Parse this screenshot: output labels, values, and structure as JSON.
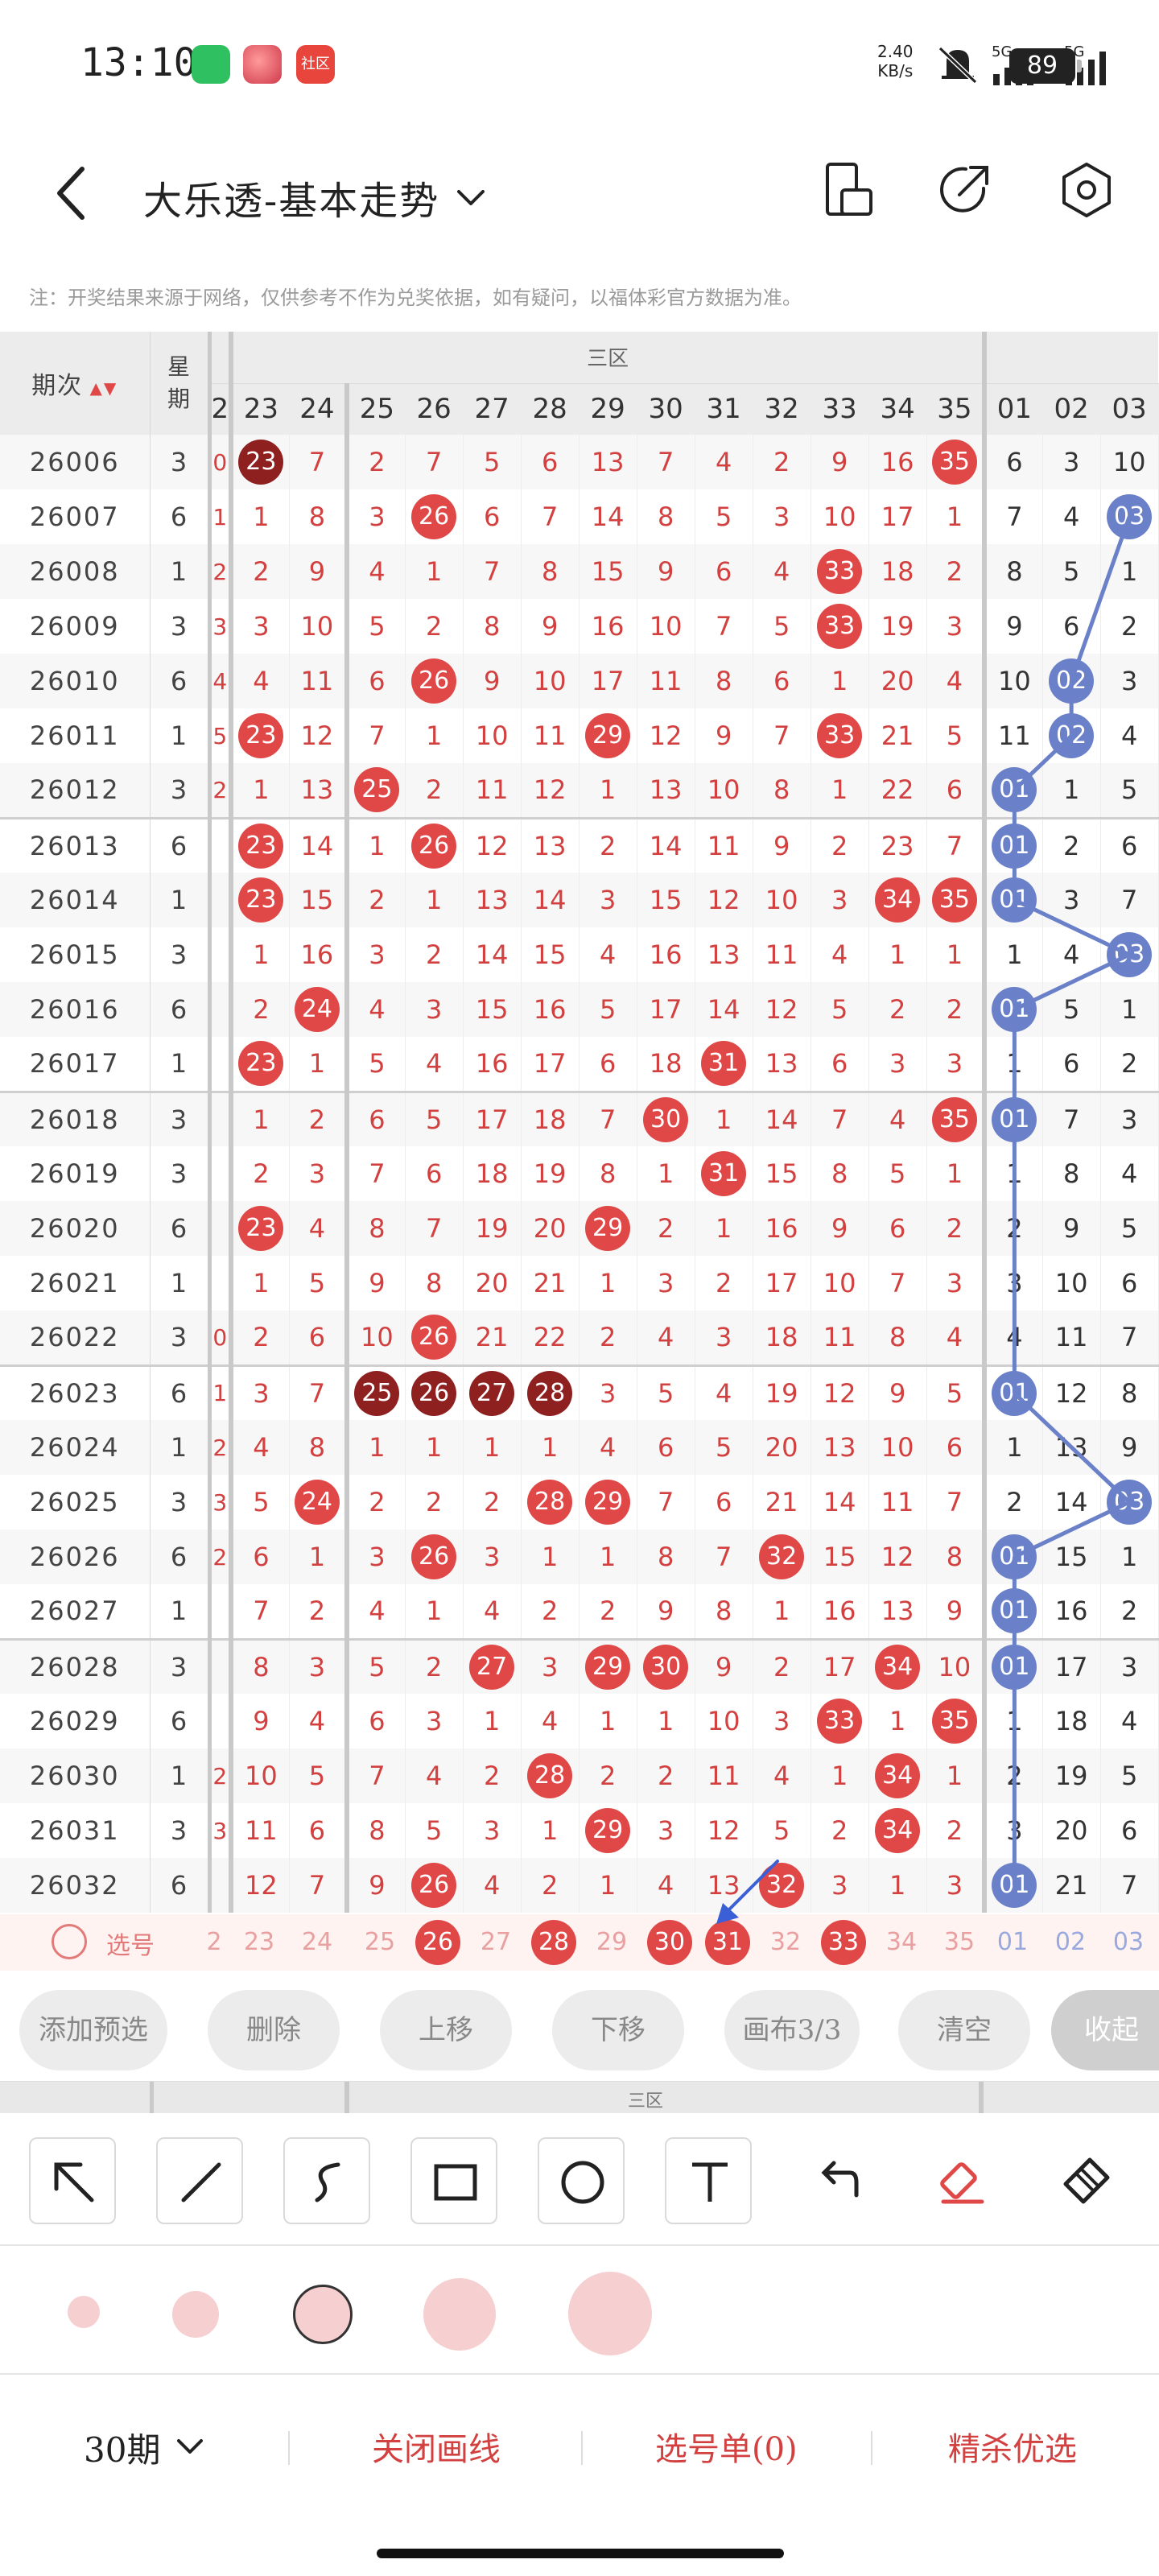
{
  "status": {
    "time": "13:10",
    "net_speed_value": "2.40",
    "net_speed_unit": "KB/s",
    "signal1": "5G",
    "signal2": "5G",
    "battery": "89"
  },
  "appbar": {
    "title": "大乐透-基本走势"
  },
  "notice": "注：开奖结果来源于网络，仅供参考不作为兑奖依据，如有疑问，以福体彩官方数据为准。",
  "table": {
    "zone_label": "三区",
    "issue_header": "期次",
    "count_header_1": "星",
    "count_header_2": "期",
    "edge_header": "2",
    "front_headers": [
      "23",
      "24",
      "25",
      "26",
      "27",
      "28",
      "29",
      "30",
      "31",
      "32",
      "33",
      "34",
      "35"
    ],
    "back_headers": [
      "01",
      "02",
      "03"
    ],
    "rows": [
      {
        "issue": "26006",
        "cnt": "3",
        "edge": "0",
        "f": [
          "23",
          "7",
          "2",
          "7",
          "5",
          "6",
          "13",
          "7",
          "4",
          "2",
          "9",
          "16",
          "35"
        ],
        "b": [
          "6",
          "3",
          "10"
        ]
      },
      {
        "issue": "26007",
        "cnt": "6",
        "edge": "1",
        "f": [
          "1",
          "8",
          "3",
          "26",
          "6",
          "7",
          "14",
          "8",
          "5",
          "3",
          "10",
          "17",
          "1"
        ],
        "b": [
          "7",
          "4",
          "03"
        ]
      },
      {
        "issue": "26008",
        "cnt": "1",
        "edge": "2",
        "f": [
          "2",
          "9",
          "4",
          "1",
          "7",
          "8",
          "15",
          "9",
          "6",
          "4",
          "33",
          "18",
          "2"
        ],
        "b": [
          "8",
          "5",
          "1"
        ]
      },
      {
        "issue": "26009",
        "cnt": "3",
        "edge": "3",
        "f": [
          "3",
          "10",
          "5",
          "2",
          "8",
          "9",
          "16",
          "10",
          "7",
          "5",
          "33",
          "19",
          "3"
        ],
        "b": [
          "9",
          "6",
          "2"
        ]
      },
      {
        "issue": "26010",
        "cnt": "6",
        "edge": "4",
        "f": [
          "4",
          "11",
          "6",
          "26",
          "9",
          "10",
          "17",
          "11",
          "8",
          "6",
          "1",
          "20",
          "4"
        ],
        "b": [
          "10",
          "02",
          "3"
        ]
      },
      {
        "issue": "26011",
        "cnt": "1",
        "edge": "5",
        "f": [
          "23",
          "12",
          "7",
          "1",
          "10",
          "11",
          "29",
          "12",
          "9",
          "7",
          "33",
          "21",
          "5"
        ],
        "b": [
          "11",
          "02",
          "4"
        ]
      },
      {
        "issue": "26012",
        "cnt": "3",
        "edge": "2",
        "f": [
          "1",
          "13",
          "25",
          "2",
          "11",
          "12",
          "1",
          "13",
          "10",
          "8",
          "1",
          "22",
          "6"
        ],
        "b": [
          "01",
          "1",
          "5"
        ]
      },
      {
        "issue": "26013",
        "cnt": "6",
        "edge": "",
        "f": [
          "23",
          "14",
          "1",
          "26",
          "12",
          "13",
          "2",
          "14",
          "11",
          "9",
          "2",
          "23",
          "7"
        ],
        "b": [
          "01",
          "2",
          "6"
        ]
      },
      {
        "issue": "26014",
        "cnt": "1",
        "edge": "",
        "f": [
          "23",
          "15",
          "2",
          "1",
          "13",
          "14",
          "3",
          "15",
          "12",
          "10",
          "3",
          "34",
          "35"
        ],
        "b": [
          "01",
          "3",
          "7"
        ]
      },
      {
        "issue": "26015",
        "cnt": "3",
        "edge": "",
        "f": [
          "1",
          "16",
          "3",
          "2",
          "14",
          "15",
          "4",
          "16",
          "13",
          "11",
          "4",
          "1",
          "1"
        ],
        "b": [
          "1",
          "4",
          "03"
        ]
      },
      {
        "issue": "26016",
        "cnt": "6",
        "edge": "",
        "f": [
          "2",
          "24",
          "4",
          "3",
          "15",
          "16",
          "5",
          "17",
          "14",
          "12",
          "5",
          "2",
          "2"
        ],
        "b": [
          "01",
          "5",
          "1"
        ]
      },
      {
        "issue": "26017",
        "cnt": "1",
        "edge": "",
        "f": [
          "23",
          "1",
          "5",
          "4",
          "16",
          "17",
          "6",
          "18",
          "31",
          "13",
          "6",
          "3",
          "3"
        ],
        "b": [
          "1",
          "6",
          "2"
        ]
      },
      {
        "issue": "26018",
        "cnt": "3",
        "edge": "",
        "f": [
          "1",
          "2",
          "6",
          "5",
          "17",
          "18",
          "7",
          "30",
          "1",
          "14",
          "7",
          "4",
          "35"
        ],
        "b": [
          "01",
          "7",
          "3"
        ]
      },
      {
        "issue": "26019",
        "cnt": "3",
        "edge": "",
        "f": [
          "2",
          "3",
          "7",
          "6",
          "18",
          "19",
          "8",
          "1",
          "31",
          "15",
          "8",
          "5",
          "1"
        ],
        "b": [
          "1",
          "8",
          "4"
        ]
      },
      {
        "issue": "26020",
        "cnt": "6",
        "edge": "",
        "f": [
          "23",
          "4",
          "8",
          "7",
          "19",
          "20",
          "29",
          "2",
          "1",
          "16",
          "9",
          "6",
          "2"
        ],
        "b": [
          "2",
          "9",
          "5"
        ]
      },
      {
        "issue": "26021",
        "cnt": "1",
        "edge": "",
        "f": [
          "1",
          "5",
          "9",
          "8",
          "20",
          "21",
          "1",
          "3",
          "2",
          "17",
          "10",
          "7",
          "3"
        ],
        "b": [
          "3",
          "10",
          "6"
        ]
      },
      {
        "issue": "26022",
        "cnt": "3",
        "edge": "0",
        "f": [
          "2",
          "6",
          "10",
          "26",
          "21",
          "22",
          "2",
          "4",
          "3",
          "18",
          "11",
          "8",
          "4"
        ],
        "b": [
          "4",
          "11",
          "7"
        ]
      },
      {
        "issue": "26023",
        "cnt": "6",
        "edge": "1",
        "f": [
          "3",
          "7",
          "25",
          "26",
          "27",
          "28",
          "3",
          "5",
          "4",
          "19",
          "12",
          "9",
          "5"
        ],
        "b": [
          "01",
          "12",
          "8"
        ]
      },
      {
        "issue": "26024",
        "cnt": "1",
        "edge": "2",
        "f": [
          "4",
          "8",
          "1",
          "1",
          "1",
          "1",
          "4",
          "6",
          "5",
          "20",
          "13",
          "10",
          "6"
        ],
        "b": [
          "1",
          "13",
          "9"
        ]
      },
      {
        "issue": "26025",
        "cnt": "3",
        "edge": "3",
        "f": [
          "5",
          "24",
          "2",
          "2",
          "2",
          "28",
          "29",
          "7",
          "6",
          "21",
          "14",
          "11",
          "7"
        ],
        "b": [
          "2",
          "14",
          "03"
        ]
      },
      {
        "issue": "26026",
        "cnt": "6",
        "edge": "2",
        "f": [
          "6",
          "1",
          "3",
          "26",
          "3",
          "1",
          "1",
          "8",
          "7",
          "32",
          "15",
          "12",
          "8"
        ],
        "b": [
          "01",
          "15",
          "1"
        ]
      },
      {
        "issue": "26027",
        "cnt": "1",
        "edge": "",
        "f": [
          "7",
          "2",
          "4",
          "1",
          "4",
          "2",
          "2",
          "9",
          "8",
          "1",
          "16",
          "13",
          "9"
        ],
        "b": [
          "01",
          "16",
          "2"
        ]
      },
      {
        "issue": "26028",
        "cnt": "3",
        "edge": "",
        "f": [
          "8",
          "3",
          "5",
          "2",
          "27",
          "3",
          "29",
          "30",
          "9",
          "2",
          "17",
          "34",
          "10"
        ],
        "b": [
          "01",
          "17",
          "3"
        ]
      },
      {
        "issue": "26029",
        "cnt": "6",
        "edge": "",
        "f": [
          "9",
          "4",
          "6",
          "3",
          "1",
          "4",
          "1",
          "1",
          "10",
          "3",
          "33",
          "1",
          "35"
        ],
        "b": [
          "1",
          "18",
          "4"
        ]
      },
      {
        "issue": "26030",
        "cnt": "1",
        "edge": "2",
        "f": [
          "10",
          "5",
          "7",
          "4",
          "2",
          "28",
          "2",
          "2",
          "11",
          "4",
          "1",
          "34",
          "1"
        ],
        "b": [
          "2",
          "19",
          "5"
        ]
      },
      {
        "issue": "26031",
        "cnt": "3",
        "edge": "3",
        "f": [
          "11",
          "6",
          "8",
          "5",
          "3",
          "1",
          "29",
          "3",
          "12",
          "5",
          "2",
          "34",
          "2"
        ],
        "b": [
          "3",
          "20",
          "6"
        ]
      },
      {
        "issue": "26032",
        "cnt": "6",
        "edge": "",
        "f": [
          "12",
          "7",
          "9",
          "26",
          "4",
          "2",
          "1",
          "4",
          "13",
          "32",
          "3",
          "1",
          "3"
        ],
        "b": [
          "01",
          "21",
          "7"
        ]
      }
    ]
  },
  "pick": {
    "label": "选号",
    "edge": "2",
    "numbers": [
      "23",
      "24",
      "25",
      "26",
      "27",
      "28",
      "29",
      "30",
      "31",
      "32",
      "33",
      "34",
      "35"
    ],
    "selected": [
      "26",
      "28",
      "30",
      "31",
      "33"
    ],
    "back_numbers": [
      "01",
      "02",
      "03"
    ]
  },
  "actions": {
    "add": "添加预选",
    "delete": "删除",
    "up": "上移",
    "down": "下移",
    "canvas": "画布3/3",
    "clear": "清空",
    "collapse": "收起"
  },
  "subhead": {
    "zone_label": "三区"
  },
  "tools": [
    "arrow-tool",
    "line-tool",
    "curve-tool",
    "rectangle-tool",
    "circle-tool",
    "text-tool",
    "undo-tool",
    "eraser-tool",
    "clear-canvas-tool"
  ],
  "bottombar": {
    "period": "30期",
    "close_lines": "关闭画线",
    "ticket": "选号单(0)",
    "featured": "精杀优选"
  },
  "colors": {
    "accent": "#d24040",
    "ball_red": "#e04848",
    "ball_dark": "#8e2020",
    "ball_blue": "#6a80c8"
  }
}
